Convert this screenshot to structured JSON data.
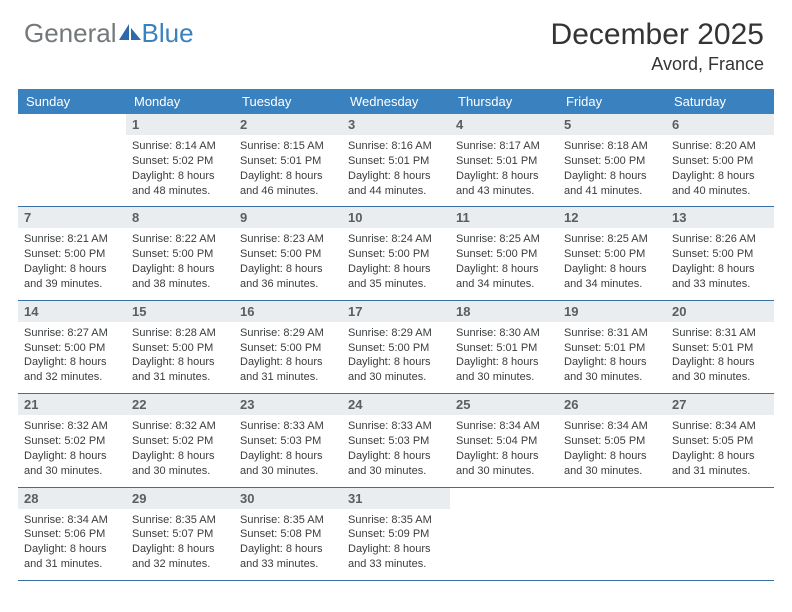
{
  "logo": {
    "text1": "General",
    "text2": "Blue"
  },
  "title": "December 2025",
  "location": "Avord, France",
  "weekdays": [
    "Sunday",
    "Monday",
    "Tuesday",
    "Wednesday",
    "Thursday",
    "Friday",
    "Saturday"
  ],
  "colors": {
    "header_bar": "#3a81c0",
    "daynum_bg": "#e9edef",
    "week_border": "#3a6fa3",
    "logo_gray": "#73787b",
    "logo_blue": "#3a81c0",
    "text": "#3a3c3d"
  },
  "typography": {
    "title_fontsize": 30,
    "location_fontsize": 18,
    "weekday_fontsize": 13,
    "daynum_fontsize": 13,
    "body_fontsize": 11
  },
  "weeks": [
    [
      null,
      {
        "num": "1",
        "sunrise": "8:14 AM",
        "sunset": "5:02 PM",
        "daylight": "8 hours and 48 minutes."
      },
      {
        "num": "2",
        "sunrise": "8:15 AM",
        "sunset": "5:01 PM",
        "daylight": "8 hours and 46 minutes."
      },
      {
        "num": "3",
        "sunrise": "8:16 AM",
        "sunset": "5:01 PM",
        "daylight": "8 hours and 44 minutes."
      },
      {
        "num": "4",
        "sunrise": "8:17 AM",
        "sunset": "5:01 PM",
        "daylight": "8 hours and 43 minutes."
      },
      {
        "num": "5",
        "sunrise": "8:18 AM",
        "sunset": "5:00 PM",
        "daylight": "8 hours and 41 minutes."
      },
      {
        "num": "6",
        "sunrise": "8:20 AM",
        "sunset": "5:00 PM",
        "daylight": "8 hours and 40 minutes."
      }
    ],
    [
      {
        "num": "7",
        "sunrise": "8:21 AM",
        "sunset": "5:00 PM",
        "daylight": "8 hours and 39 minutes."
      },
      {
        "num": "8",
        "sunrise": "8:22 AM",
        "sunset": "5:00 PM",
        "daylight": "8 hours and 38 minutes."
      },
      {
        "num": "9",
        "sunrise": "8:23 AM",
        "sunset": "5:00 PM",
        "daylight": "8 hours and 36 minutes."
      },
      {
        "num": "10",
        "sunrise": "8:24 AM",
        "sunset": "5:00 PM",
        "daylight": "8 hours and 35 minutes."
      },
      {
        "num": "11",
        "sunrise": "8:25 AM",
        "sunset": "5:00 PM",
        "daylight": "8 hours and 34 minutes."
      },
      {
        "num": "12",
        "sunrise": "8:25 AM",
        "sunset": "5:00 PM",
        "daylight": "8 hours and 34 minutes."
      },
      {
        "num": "13",
        "sunrise": "8:26 AM",
        "sunset": "5:00 PM",
        "daylight": "8 hours and 33 minutes."
      }
    ],
    [
      {
        "num": "14",
        "sunrise": "8:27 AM",
        "sunset": "5:00 PM",
        "daylight": "8 hours and 32 minutes."
      },
      {
        "num": "15",
        "sunrise": "8:28 AM",
        "sunset": "5:00 PM",
        "daylight": "8 hours and 31 minutes."
      },
      {
        "num": "16",
        "sunrise": "8:29 AM",
        "sunset": "5:00 PM",
        "daylight": "8 hours and 31 minutes."
      },
      {
        "num": "17",
        "sunrise": "8:29 AM",
        "sunset": "5:00 PM",
        "daylight": "8 hours and 30 minutes."
      },
      {
        "num": "18",
        "sunrise": "8:30 AM",
        "sunset": "5:01 PM",
        "daylight": "8 hours and 30 minutes."
      },
      {
        "num": "19",
        "sunrise": "8:31 AM",
        "sunset": "5:01 PM",
        "daylight": "8 hours and 30 minutes."
      },
      {
        "num": "20",
        "sunrise": "8:31 AM",
        "sunset": "5:01 PM",
        "daylight": "8 hours and 30 minutes."
      }
    ],
    [
      {
        "num": "21",
        "sunrise": "8:32 AM",
        "sunset": "5:02 PM",
        "daylight": "8 hours and 30 minutes."
      },
      {
        "num": "22",
        "sunrise": "8:32 AM",
        "sunset": "5:02 PM",
        "daylight": "8 hours and 30 minutes."
      },
      {
        "num": "23",
        "sunrise": "8:33 AM",
        "sunset": "5:03 PM",
        "daylight": "8 hours and 30 minutes."
      },
      {
        "num": "24",
        "sunrise": "8:33 AM",
        "sunset": "5:03 PM",
        "daylight": "8 hours and 30 minutes."
      },
      {
        "num": "25",
        "sunrise": "8:34 AM",
        "sunset": "5:04 PM",
        "daylight": "8 hours and 30 minutes."
      },
      {
        "num": "26",
        "sunrise": "8:34 AM",
        "sunset": "5:05 PM",
        "daylight": "8 hours and 30 minutes."
      },
      {
        "num": "27",
        "sunrise": "8:34 AM",
        "sunset": "5:05 PM",
        "daylight": "8 hours and 31 minutes."
      }
    ],
    [
      {
        "num": "28",
        "sunrise": "8:34 AM",
        "sunset": "5:06 PM",
        "daylight": "8 hours and 31 minutes."
      },
      {
        "num": "29",
        "sunrise": "8:35 AM",
        "sunset": "5:07 PM",
        "daylight": "8 hours and 32 minutes."
      },
      {
        "num": "30",
        "sunrise": "8:35 AM",
        "sunset": "5:08 PM",
        "daylight": "8 hours and 33 minutes."
      },
      {
        "num": "31",
        "sunrise": "8:35 AM",
        "sunset": "5:09 PM",
        "daylight": "8 hours and 33 minutes."
      },
      null,
      null,
      null
    ]
  ],
  "labels": {
    "sunrise": "Sunrise:",
    "sunset": "Sunset:",
    "daylight": "Daylight:"
  }
}
